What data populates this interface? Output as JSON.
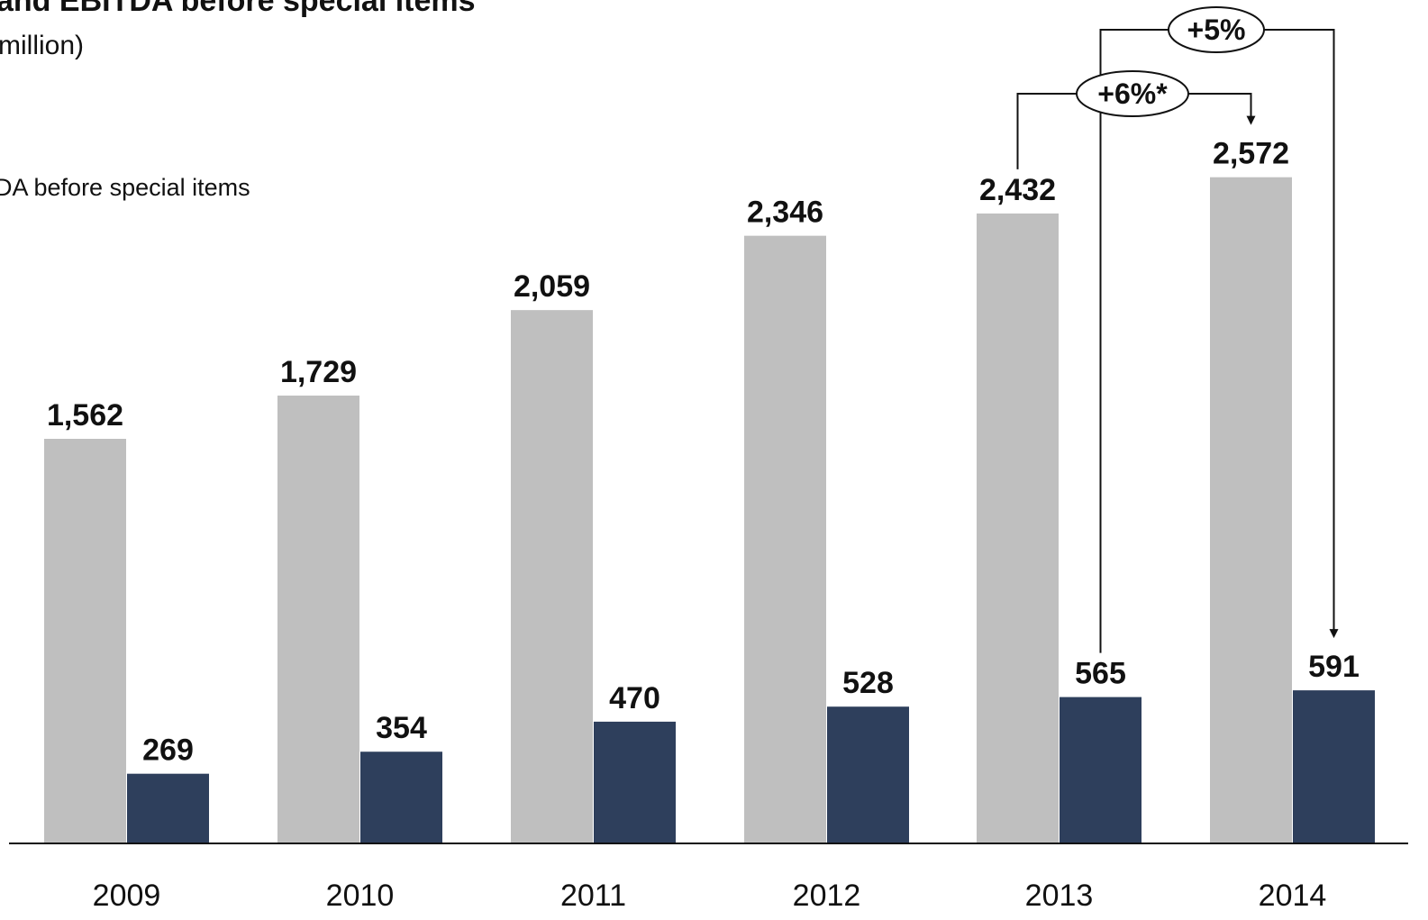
{
  "chart_data": {
    "type": "bar",
    "title": "and EBITDA before special items",
    "subtitle": "million)",
    "categories": [
      "2009",
      "2010",
      "2011",
      "2012",
      "2013",
      "2014"
    ],
    "series": [
      {
        "name": "DA before special items",
        "color": "#bfbfbf",
        "values": [
          1562,
          1729,
          2059,
          2346,
          2432,
          2572
        ],
        "labels": [
          "1,562",
          "1,729",
          "2,059",
          "2,346",
          "2,432",
          "2,572"
        ]
      },
      {
        "color": "#2e3f5c",
        "values": [
          269,
          354,
          470,
          528,
          565,
          591
        ],
        "labels": [
          "269",
          "354",
          "470",
          "528",
          "565",
          "591"
        ]
      }
    ],
    "ylim": [
      0,
      3000
    ],
    "grid": false,
    "annotations": [
      {
        "text": "+6%*",
        "from": "2013",
        "to": "2014",
        "series": 0
      },
      {
        "text": "+5%",
        "from": "2013",
        "to": "2014",
        "series": 1
      }
    ]
  }
}
